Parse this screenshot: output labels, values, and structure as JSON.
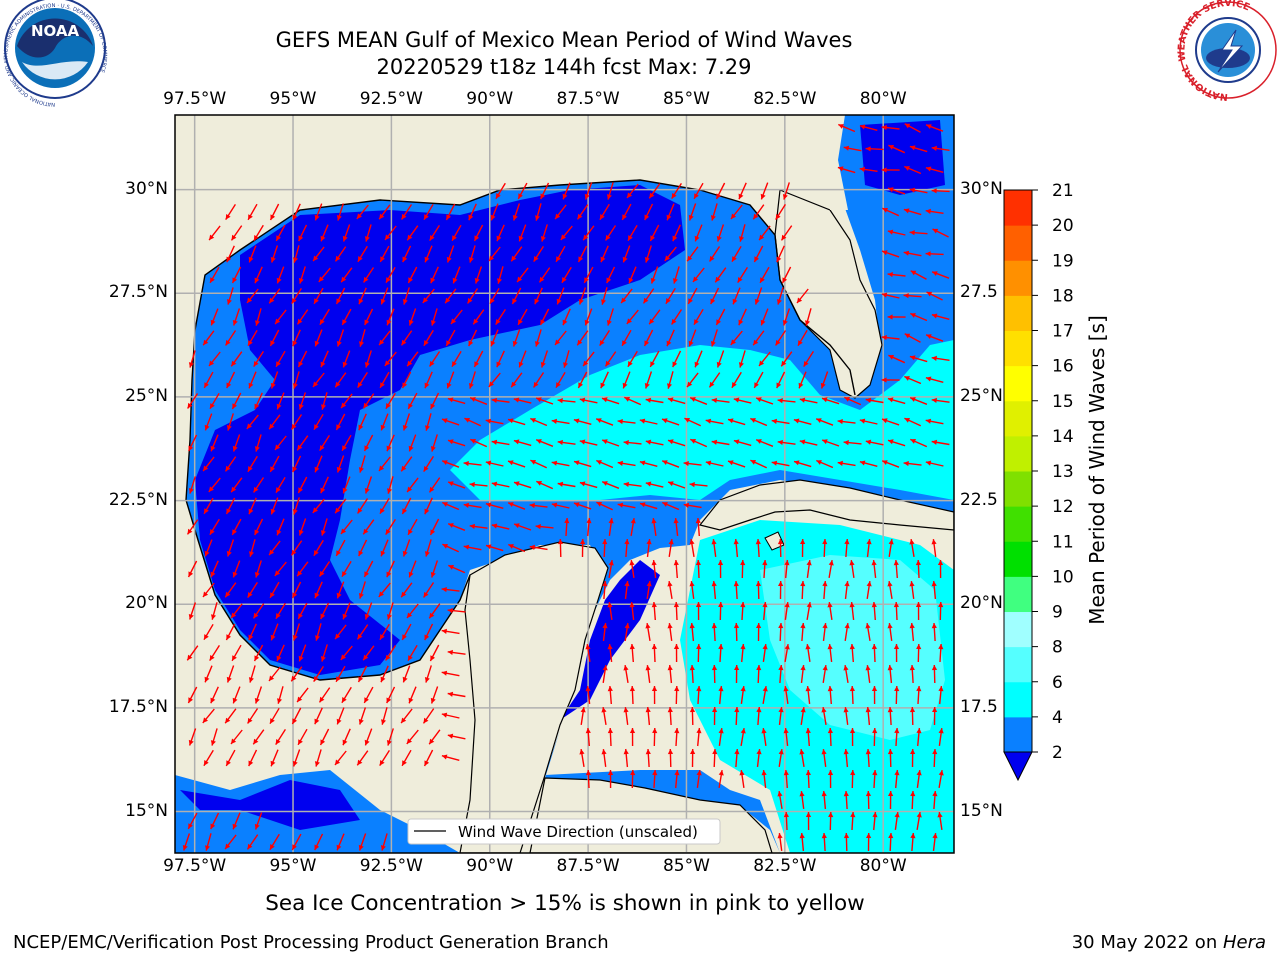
{
  "title": {
    "line1": "GEFS MEAN Gulf of Mexico Mean Period of Wind Waves",
    "line2": "20220529 t18z 144h fcst   Max: 7.29"
  },
  "map": {
    "lon_range": [
      -98,
      -78.2
    ],
    "lat_range": [
      14.0,
      31.8
    ],
    "lon_ticks": [
      -97.5,
      -95,
      -92.5,
      -90,
      -87.5,
      -85,
      -82.5,
      -80
    ],
    "lat_ticks": [
      15,
      17.5,
      20,
      22.5,
      25,
      27.5,
      30
    ],
    "lon_labels": [
      "97.5°W",
      "95°W",
      "92.5°W",
      "90°W",
      "87.5°W",
      "85°W",
      "82.5°W",
      "80°W"
    ],
    "lat_labels": [
      "15°N",
      "17.5°N",
      "20°N",
      "22.5°N",
      "25°N",
      "27.5°N",
      "30°N"
    ],
    "lat_labels_right": [
      "15°N",
      "17.5",
      "20°N",
      "22.5",
      "25°N",
      "27.5",
      "30°N"
    ],
    "colors": {
      "land": "#efeddb",
      "ocean_base": "#0a80ff",
      "period_2_4": "#0a80ff",
      "period_4_6": "#00ffff",
      "period_6_8": "#55ffff",
      "period_below_2": "#0000ef",
      "arrow": "#ff0000",
      "grid": "#b0b0b0"
    },
    "legend_text": "Wind Wave Direction (unscaled)"
  },
  "colorbar": {
    "label": "Mean Period of Wind Waves [s]",
    "tick_labels": [
      "2",
      "4",
      "6",
      "8",
      "9",
      "10",
      "11",
      "12",
      "13",
      "14",
      "15",
      "16",
      "17",
      "18",
      "19",
      "20",
      "21"
    ],
    "level_colors": [
      "#0a80ff",
      "#00ffff",
      "#55ffff",
      "#a0ffff",
      "#40ff80",
      "#00e000",
      "#40e000",
      "#80e000",
      "#c0f000",
      "#e0f000",
      "#ffff00",
      "#ffe000",
      "#ffc000",
      "#ff9000",
      "#ff6000",
      "#ff3000",
      "#ff0000"
    ],
    "under_color": "#0000ef"
  },
  "footer": {
    "note": "Sea Ice Concentration > 15% is shown in pink to yellow",
    "credit": "NCEP/EMC/Verification Post Processing Product Generation Branch",
    "date": "30 May 2022 on ",
    "host": "Hera"
  },
  "logos": {
    "noaa_text": "NOAA",
    "noaa_ring": "NATIONAL OCEANIC AND ATMOSPHERIC ADMINISTRATION · U.S. DEPARTMENT OF COMMERCE",
    "nws_ring": "NATIONAL WEATHER SERVICE"
  }
}
